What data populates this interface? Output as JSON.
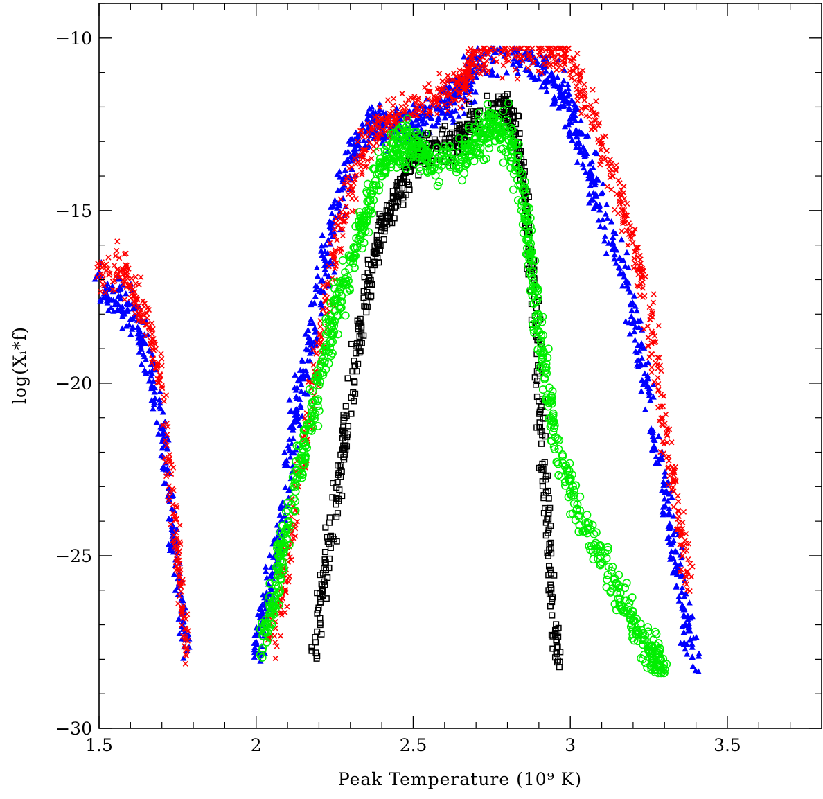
{
  "chart_data": {
    "type": "scatter",
    "title": "",
    "xlabel": "Peak Temperature (10⁹ K)",
    "ylabel": "log(Xᵢ*f)",
    "xlim": [
      1.5,
      3.8
    ],
    "ylim": [
      -30,
      -9
    ],
    "xticks": [
      "1.5",
      "2",
      "2.5",
      "3",
      "3.5"
    ],
    "yticks": [
      "-10",
      "-15",
      "-20",
      "-25",
      "-30"
    ],
    "grid": false,
    "legend": "none",
    "series": [
      {
        "marker": "cross",
        "color": "#ff0000",
        "trend": [
          [
            1.5,
            -16.7
          ],
          [
            1.58,
            -16.8
          ],
          [
            1.62,
            -17.5
          ],
          [
            1.66,
            -18.5
          ],
          [
            1.7,
            -20
          ],
          [
            1.73,
            -23
          ],
          [
            1.76,
            -26
          ],
          [
            1.78,
            -28
          ]
        ],
        "trend2": [
          [
            2.05,
            -27.5
          ],
          [
            2.1,
            -25
          ],
          [
            2.15,
            -22
          ],
          [
            2.2,
            -19
          ],
          [
            2.25,
            -16
          ],
          [
            2.3,
            -14.5
          ],
          [
            2.35,
            -13
          ],
          [
            2.4,
            -12.5
          ],
          [
            2.5,
            -12
          ],
          [
            2.6,
            -11.6
          ],
          [
            2.66,
            -11.4
          ],
          [
            2.68,
            -10.6
          ],
          [
            2.75,
            -10.5
          ],
          [
            2.9,
            -10.5
          ],
          [
            3.0,
            -10.5
          ],
          [
            3.05,
            -11.8
          ],
          [
            3.12,
            -13.5
          ],
          [
            3.2,
            -16
          ],
          [
            3.25,
            -18
          ],
          [
            3.3,
            -21
          ],
          [
            3.35,
            -24
          ],
          [
            3.38,
            -26
          ]
        ]
      },
      {
        "marker": "triangle",
        "color": "#0000ff",
        "trend": [
          [
            1.5,
            -17.3
          ],
          [
            1.57,
            -17.5
          ],
          [
            1.62,
            -18.3
          ],
          [
            1.66,
            -19.5
          ],
          [
            1.7,
            -21
          ],
          [
            1.72,
            -23
          ],
          [
            1.75,
            -25.5
          ],
          [
            1.78,
            -28
          ]
        ],
        "trend2": [
          [
            2.0,
            -28
          ],
          [
            2.04,
            -26
          ],
          [
            2.08,
            -24
          ],
          [
            2.12,
            -21
          ],
          [
            2.17,
            -19
          ],
          [
            2.22,
            -16.5
          ],
          [
            2.27,
            -14.5
          ],
          [
            2.32,
            -13
          ],
          [
            2.38,
            -12.5
          ],
          [
            2.42,
            -12.6
          ],
          [
            2.5,
            -12.5
          ],
          [
            2.6,
            -12.0
          ],
          [
            2.66,
            -11.5
          ],
          [
            2.7,
            -10.7
          ],
          [
            2.85,
            -10.6
          ],
          [
            2.95,
            -11.2
          ],
          [
            3.0,
            -12
          ],
          [
            3.05,
            -13.5
          ],
          [
            3.1,
            -15
          ],
          [
            3.18,
            -17
          ],
          [
            3.24,
            -20
          ],
          [
            3.3,
            -23
          ],
          [
            3.35,
            -26
          ],
          [
            3.4,
            -28
          ]
        ]
      },
      {
        "marker": "square",
        "color": "#000000",
        "trend": [
          [
            2.18,
            -27.8
          ],
          [
            2.22,
            -25.5
          ],
          [
            2.26,
            -23
          ],
          [
            2.29,
            -21
          ],
          [
            2.32,
            -19
          ],
          [
            2.36,
            -17
          ],
          [
            2.4,
            -15.5
          ],
          [
            2.45,
            -14.5
          ],
          [
            2.5,
            -13.5
          ],
          [
            2.55,
            -13.2
          ],
          [
            2.62,
            -13.1
          ],
          [
            2.66,
            -12.8
          ],
          [
            2.7,
            -12.2
          ],
          [
            2.78,
            -12.0
          ],
          [
            2.82,
            -12.4
          ],
          [
            2.85,
            -14
          ],
          [
            2.88,
            -17
          ],
          [
            2.9,
            -20
          ],
          [
            2.92,
            -23
          ],
          [
            2.94,
            -26
          ],
          [
            2.96,
            -28
          ]
        ]
      },
      {
        "marker": "circle",
        "color": "#00ee00",
        "trend": [
          [
            2.02,
            -27.5
          ],
          [
            2.06,
            -26
          ],
          [
            2.1,
            -24
          ],
          [
            2.15,
            -22
          ],
          [
            2.2,
            -20
          ],
          [
            2.25,
            -18
          ],
          [
            2.3,
            -16.5
          ],
          [
            2.35,
            -15
          ],
          [
            2.4,
            -13.8
          ],
          [
            2.45,
            -13.2
          ],
          [
            2.5,
            -13.0
          ],
          [
            2.55,
            -13.6
          ],
          [
            2.65,
            -13.6
          ],
          [
            2.7,
            -13.0
          ],
          [
            2.75,
            -12.5
          ],
          [
            2.8,
            -12.7
          ],
          [
            2.85,
            -14.5
          ],
          [
            2.88,
            -17
          ],
          [
            2.92,
            -19.5
          ],
          [
            2.96,
            -22
          ],
          [
            3.02,
            -23.5
          ],
          [
            3.1,
            -25
          ],
          [
            3.18,
            -26.5
          ],
          [
            3.25,
            -27.8
          ],
          [
            3.3,
            -28.2
          ]
        ]
      }
    ]
  }
}
